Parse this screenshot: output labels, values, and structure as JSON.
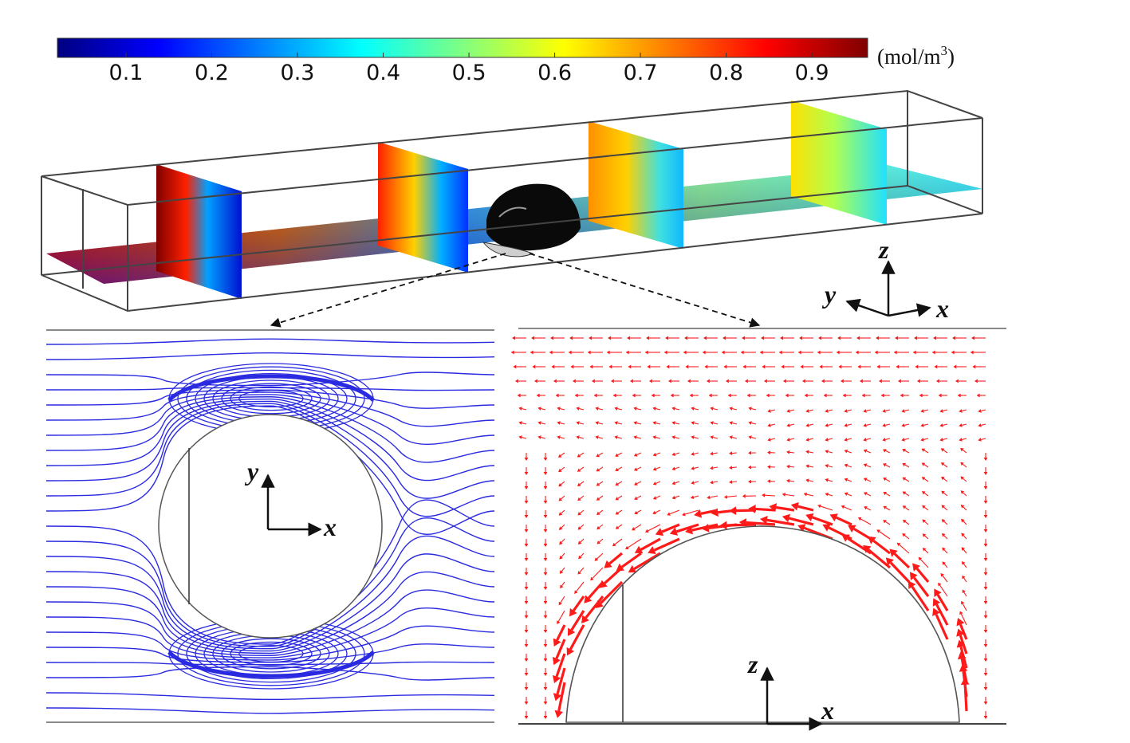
{
  "colorbar": {
    "ticks": [
      "0.1",
      "0.2",
      "0.3",
      "0.4",
      "0.5",
      "0.6",
      "0.7",
      "0.8",
      "0.9"
    ],
    "unit": "(mol/m",
    "unit_sup": "3",
    "unit_close": ")",
    "colors": [
      "#00007f",
      "#0000ff",
      "#0080ff",
      "#00ffff",
      "#80ff80",
      "#ffff00",
      "#ff8000",
      "#ff0000",
      "#7f0000"
    ]
  },
  "axes3d": {
    "z": "z",
    "y": "y",
    "x": "x"
  },
  "panel_top_view": {
    "y": "y",
    "x": "x",
    "streamline_color": "#2a2ae0"
  },
  "panel_side_view": {
    "z": "z",
    "x": "x",
    "arrow_color": "#ff1a1a"
  }
}
